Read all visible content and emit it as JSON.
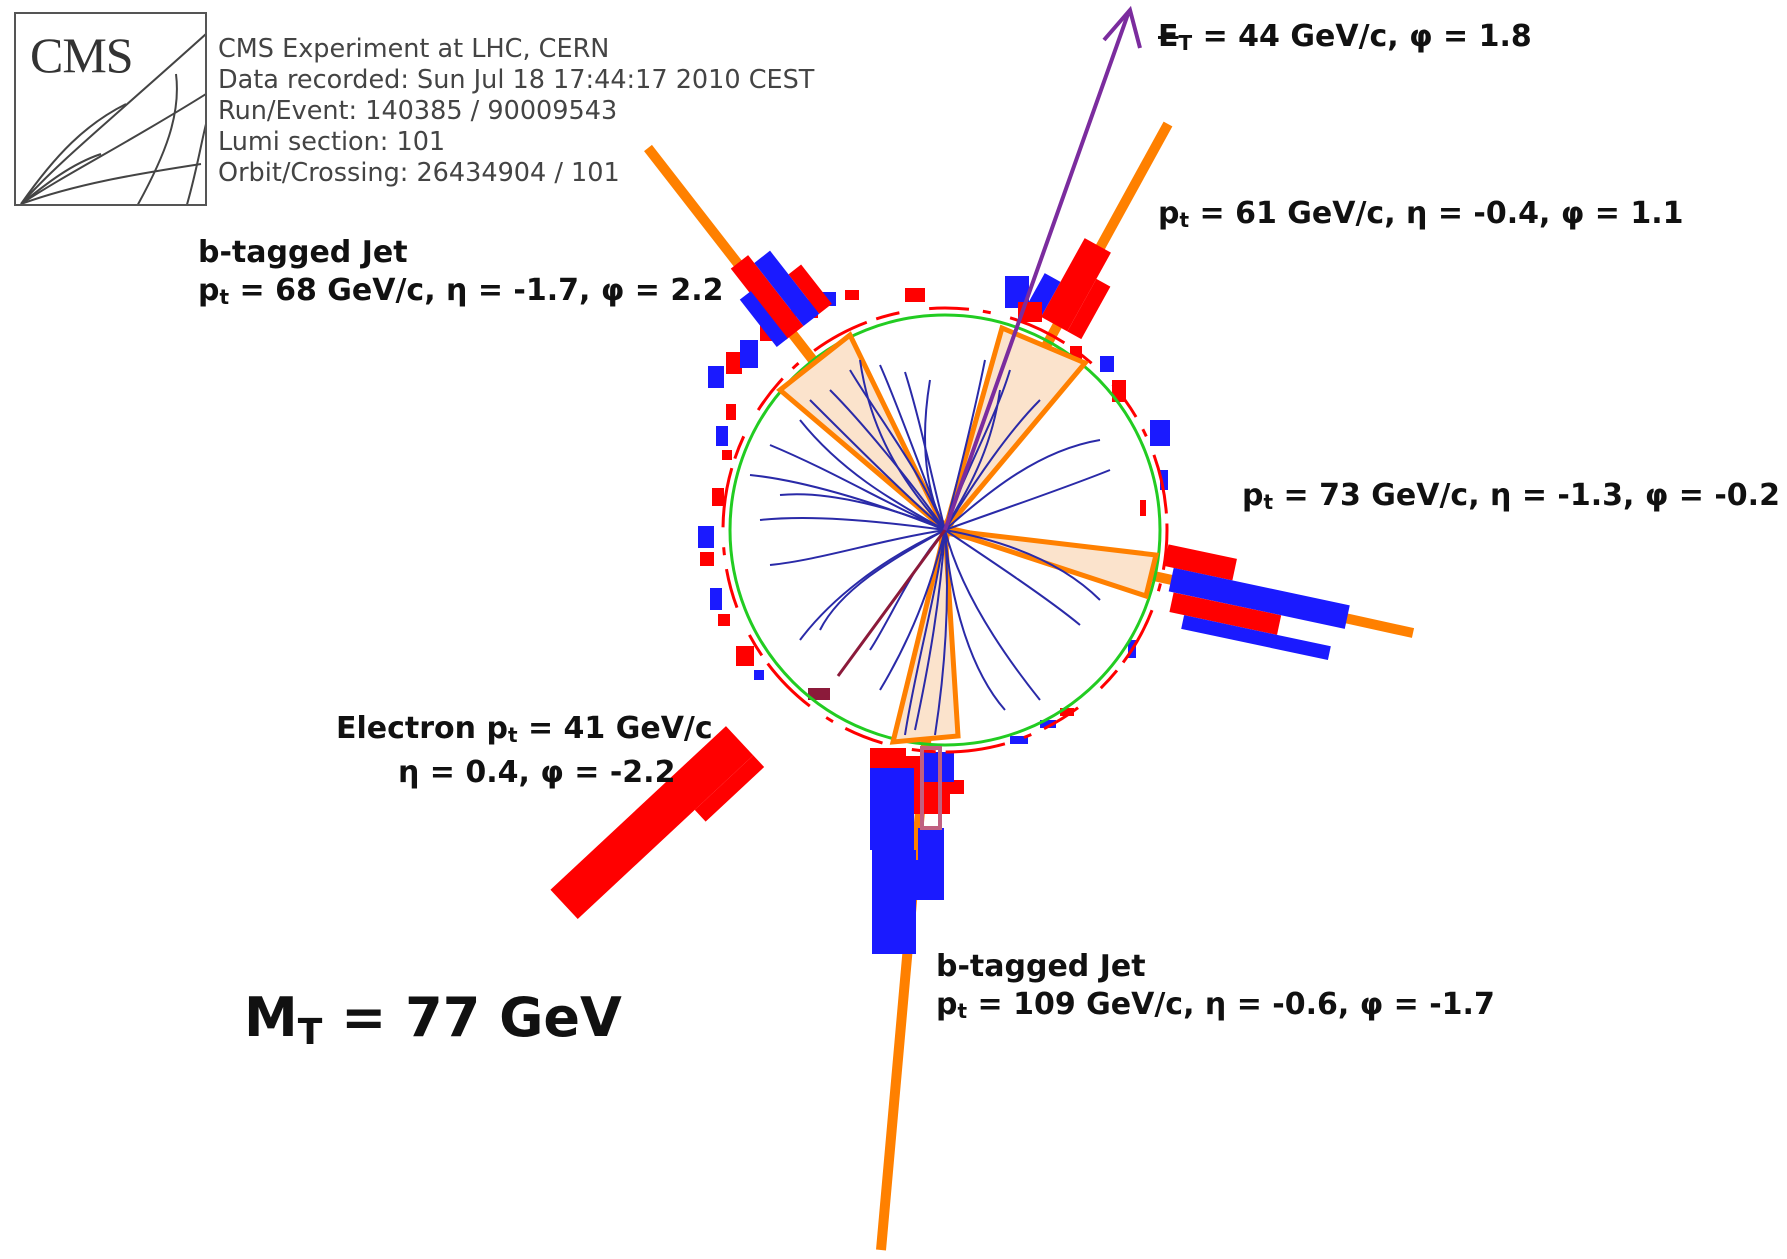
{
  "logo": {
    "text": "CMS"
  },
  "event_info": {
    "experiment": "CMS Experiment at LHC, CERN",
    "recorded": "Data recorded: Sun Jul 18 17:44:17 2010 CEST",
    "run_event": "Run/Event: 140385 / 90009543",
    "lumi": "Lumi section: 101",
    "orbit": "Orbit/Crossing: 26434904 / 101"
  },
  "colors": {
    "jet": "#ff8000",
    "jet_cone_fill": "#fbe3cc",
    "met": "#7b2c9e",
    "ecal": "#ff0000",
    "hcal": "#1a1aff",
    "tracks": "#2a2aa8",
    "electron": "#8b1a3a",
    "tracker_circle": "#22cc22"
  },
  "met": {
    "symbol": "E",
    "sub": "T",
    "rest": " = 44 GeV/c, φ = 1.8"
  },
  "jet1": {
    "pre": "p",
    "sub": "t",
    "rest": " = 61 GeV/c, η = -0.4, φ = 1.1"
  },
  "jet2": {
    "title": "b-tagged Jet",
    "pre": "p",
    "sub": "t",
    "rest": " = 68 GeV/c, η = -1.7, φ = 2.2"
  },
  "jet3": {
    "pre": "p",
    "sub": "t",
    "rest": " = 73 GeV/c, η = -1.3, φ = -0.2"
  },
  "electron": {
    "pre": "Electron p",
    "sub": "t",
    "rest": " = 41 GeV/c",
    "line2": "η = 0.4, φ = -2.2"
  },
  "jet4": {
    "title": "b-tagged Jet",
    "pre": "p",
    "sub": "t",
    "rest": " = 109 GeV/c, η = -0.6, φ = -1.7"
  },
  "mt": {
    "pre": "M",
    "sub": "T",
    "rest": " = 77 GeV"
  }
}
